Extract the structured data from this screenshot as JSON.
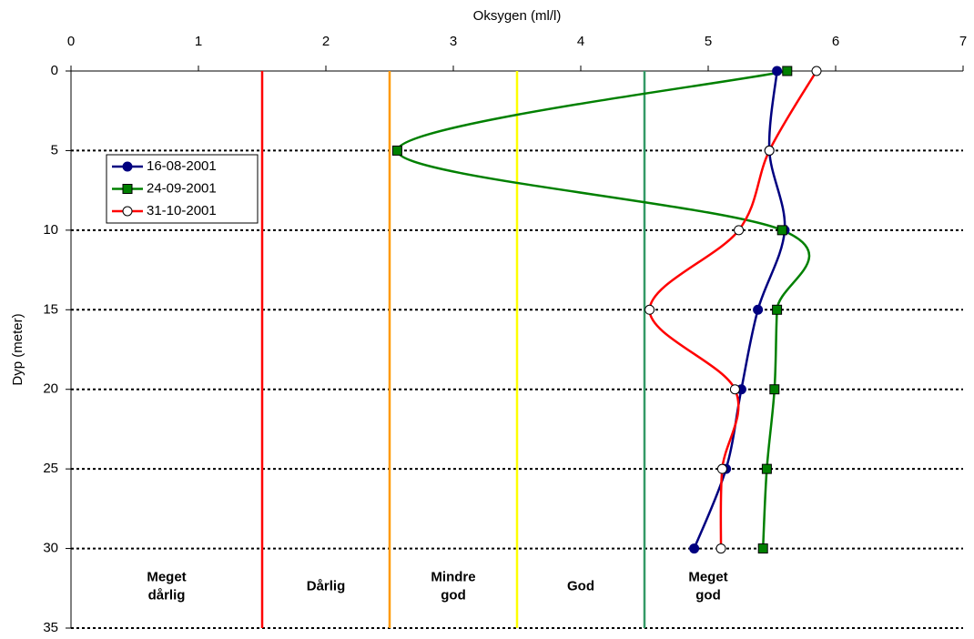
{
  "chart_data": {
    "type": "line",
    "xlabel": "Oksygen (ml/l)",
    "ylabel": "Dyp (meter)",
    "depths": [
      0,
      5,
      10,
      15,
      20,
      25,
      30
    ],
    "series": [
      {
        "name": "16-08-2001",
        "color": "#000080",
        "marker": "circle",
        "marker_fill": "#000080",
        "values": [
          5.54,
          5.48,
          5.6,
          5.39,
          5.26,
          5.14,
          4.89
        ]
      },
      {
        "name": "24-09-2001",
        "color": "#008000",
        "marker": "square",
        "marker_fill": "#008000",
        "values": [
          5.62,
          2.56,
          5.58,
          5.54,
          5.52,
          5.46,
          5.43
        ]
      },
      {
        "name": "31-10-2001",
        "color": "#ff0000",
        "marker": "circle",
        "marker_fill": "#ffffff",
        "values": [
          5.85,
          5.48,
          5.24,
          4.54,
          5.21,
          5.11,
          5.1
        ]
      }
    ],
    "thresholds": [
      {
        "value": 1.5,
        "color": "#ff0000"
      },
      {
        "value": 2.5,
        "color": "#ff9900"
      },
      {
        "value": 3.5,
        "color": "#ffff00"
      },
      {
        "value": 4.5,
        "color": "#339966"
      }
    ],
    "zones": [
      [
        "Meget",
        "dårlig"
      ],
      [
        "Dårlig"
      ],
      [
        "Mindre",
        "god"
      ],
      [
        "God"
      ],
      [
        "Meget",
        "god"
      ]
    ],
    "xlim": [
      0,
      7
    ],
    "xticks": [
      0,
      1,
      2,
      3,
      4,
      5,
      6,
      7
    ],
    "ylim": [
      0,
      35
    ],
    "yticks": [
      0,
      5,
      10,
      15,
      20,
      25,
      30,
      35
    ],
    "grid": true,
    "legend": "upper left"
  }
}
